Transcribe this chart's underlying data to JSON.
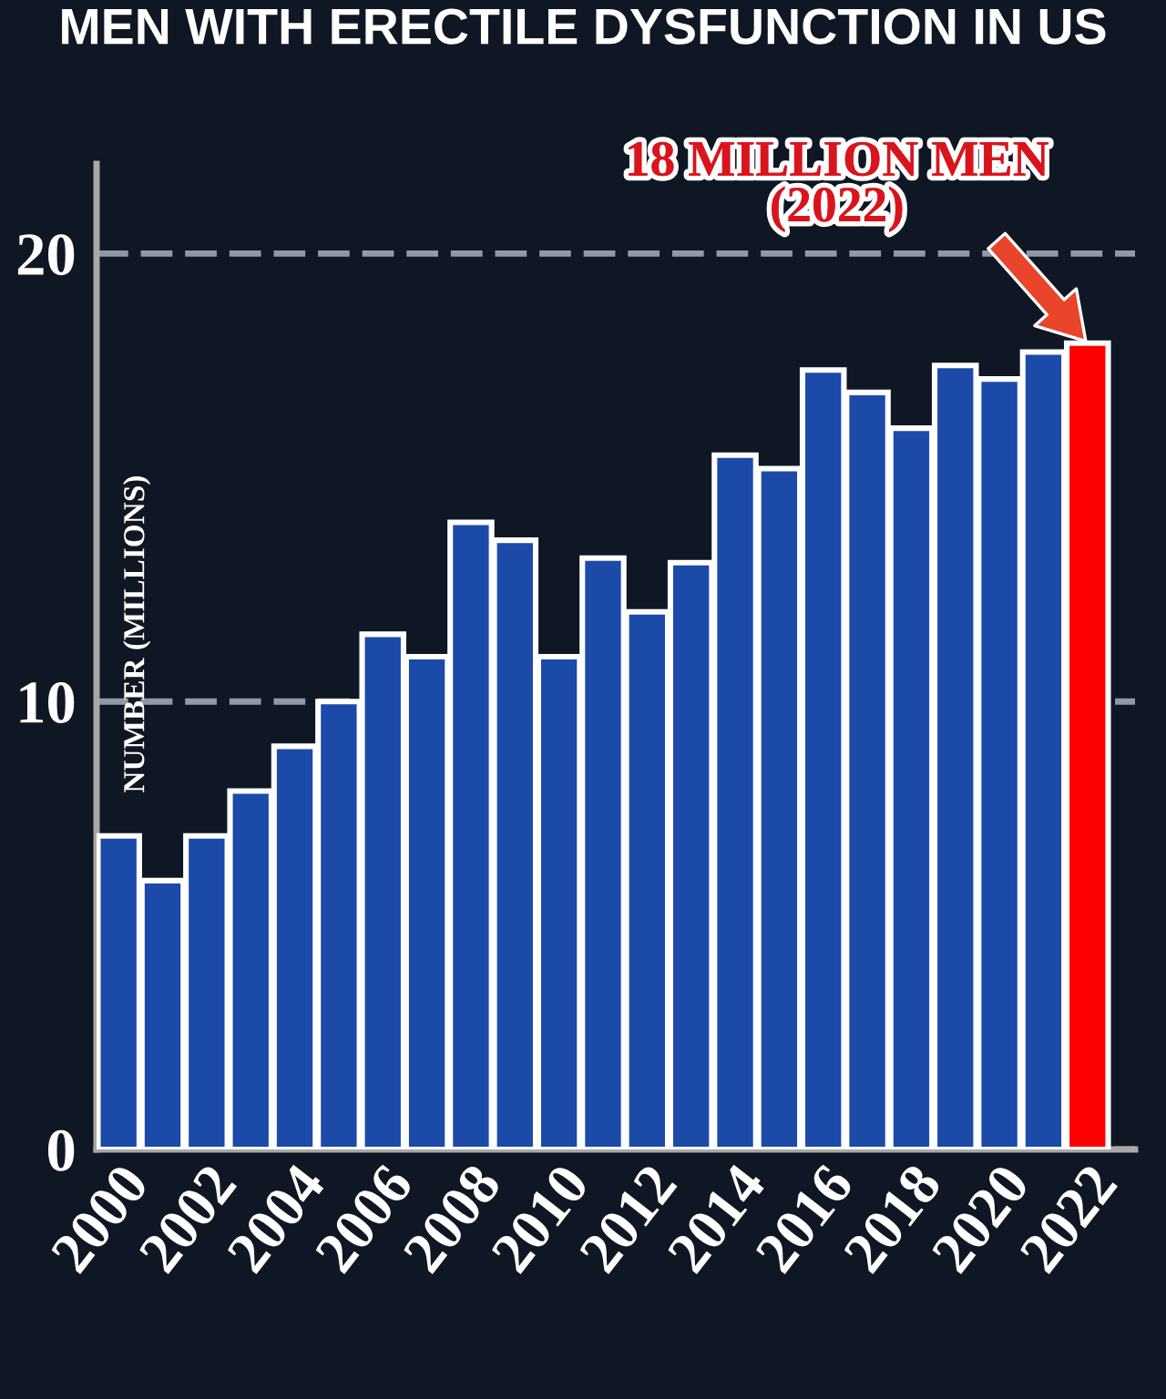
{
  "chart_data": {
    "type": "bar",
    "title": "MEN WITH ERECTILE DYSFUNCTION IN US",
    "ylabel": "NUMBER (MILLIONS)",
    "categories": [
      "2000",
      null,
      "2002",
      null,
      "2004",
      null,
      "2006",
      null,
      "2008",
      null,
      "2010",
      null,
      "2012",
      null,
      "2014",
      null,
      "2016",
      null,
      "2018",
      null,
      "2020",
      null,
      "2022"
    ],
    "values": [
      7.0,
      6.0,
      7.0,
      8.0,
      9.0,
      10.0,
      11.5,
      11.0,
      14.0,
      13.6,
      11.0,
      13.2,
      12.0,
      13.1,
      15.5,
      15.2,
      17.4,
      16.9,
      16.1,
      17.5,
      17.2,
      17.8,
      18.0
    ],
    "colors": [
      "#1b4aa8",
      "#1b4aa8",
      "#1b4aa8",
      "#1b4aa8",
      "#1b4aa8",
      "#1b4aa8",
      "#1b4aa8",
      "#1b4aa8",
      "#1b4aa8",
      "#1b4aa8",
      "#1b4aa8",
      "#1b4aa8",
      "#1b4aa8",
      "#1b4aa8",
      "#1b4aa8",
      "#1b4aa8",
      "#1b4aa8",
      "#1b4aa8",
      "#1b4aa8",
      "#1b4aa8",
      "#1b4aa8",
      "#1b4aa8",
      "#ff0000"
    ],
    "ylim": [
      0,
      22
    ],
    "yticks": [
      0,
      10,
      20
    ],
    "grid": "y",
    "annotations": [
      {
        "text": "18 MILLION MEN\n(2022)",
        "x": "2022",
        "y": 18
      }
    ]
  }
}
